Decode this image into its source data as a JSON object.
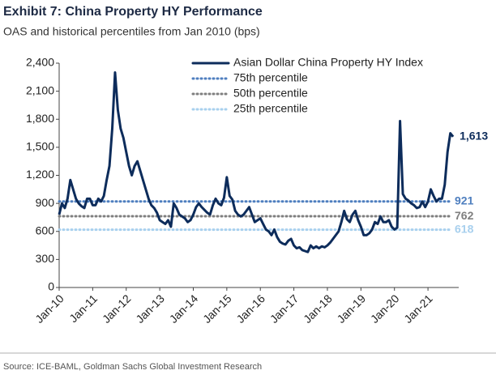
{
  "chart_data": {
    "type": "line",
    "title": "Exhibit 7: China Property HY Performance",
    "subtitle": "OAS and historical percentiles from Jan 2010 (bps)",
    "source": "Source: ICE-BAML, Goldman Sachs Global Investment Research",
    "x": [
      "2010-01",
      "2010-02",
      "2010-03",
      "2010-04",
      "2010-05",
      "2010-06",
      "2010-07",
      "2010-08",
      "2010-09",
      "2010-10",
      "2010-11",
      "2010-12",
      "2011-01",
      "2011-02",
      "2011-03",
      "2011-04",
      "2011-05",
      "2011-06",
      "2011-07",
      "2011-08",
      "2011-09",
      "2011-10",
      "2011-11",
      "2011-12",
      "2012-01",
      "2012-02",
      "2012-03",
      "2012-04",
      "2012-05",
      "2012-06",
      "2012-07",
      "2012-08",
      "2012-09",
      "2012-10",
      "2012-11",
      "2012-12",
      "2013-01",
      "2013-02",
      "2013-03",
      "2013-04",
      "2013-05",
      "2013-06",
      "2013-07",
      "2013-08",
      "2013-09",
      "2013-10",
      "2013-11",
      "2013-12",
      "2014-01",
      "2014-02",
      "2014-03",
      "2014-04",
      "2014-05",
      "2014-06",
      "2014-07",
      "2014-08",
      "2014-09",
      "2014-10",
      "2014-11",
      "2014-12",
      "2015-01",
      "2015-02",
      "2015-03",
      "2015-04",
      "2015-05",
      "2015-06",
      "2015-07",
      "2015-08",
      "2015-09",
      "2015-10",
      "2015-11",
      "2015-12",
      "2016-01",
      "2016-02",
      "2016-03",
      "2016-04",
      "2016-05",
      "2016-06",
      "2016-07",
      "2016-08",
      "2016-09",
      "2016-10",
      "2016-11",
      "2016-12",
      "2017-01",
      "2017-02",
      "2017-03",
      "2017-04",
      "2017-05",
      "2017-06",
      "2017-07",
      "2017-08",
      "2017-09",
      "2017-10",
      "2017-11",
      "2017-12",
      "2018-01",
      "2018-02",
      "2018-03",
      "2018-04",
      "2018-05",
      "2018-06",
      "2018-07",
      "2018-08",
      "2018-09",
      "2018-10",
      "2018-11",
      "2018-12",
      "2019-01",
      "2019-02",
      "2019-03",
      "2019-04",
      "2019-05",
      "2019-06",
      "2019-07",
      "2019-08",
      "2019-09",
      "2019-10",
      "2019-11",
      "2019-12",
      "2020-01",
      "2020-02",
      "2020-03",
      "2020-04",
      "2020-05",
      "2020-06",
      "2020-07",
      "2020-08",
      "2020-09",
      "2020-10",
      "2020-11",
      "2020-12",
      "2021-01",
      "2021-02",
      "2021-03",
      "2021-04",
      "2021-05",
      "2021-06",
      "2021-07",
      "2021-08",
      "2021-09",
      "2021-10"
    ],
    "series": [
      {
        "name": "Asian Dollar China Property HY Index",
        "color": "#0d2c5b",
        "values": [
          780,
          900,
          850,
          950,
          1150,
          1050,
          950,
          900,
          870,
          850,
          950,
          950,
          880,
          880,
          950,
          920,
          980,
          1150,
          1300,
          1700,
          2300,
          1900,
          1700,
          1600,
          1450,
          1300,
          1200,
          1300,
          1350,
          1250,
          1150,
          1050,
          950,
          880,
          850,
          800,
          720,
          700,
          680,
          720,
          650,
          900,
          850,
          780,
          760,
          740,
          700,
          720,
          780,
          860,
          900,
          860,
          830,
          800,
          780,
          880,
          950,
          900,
          880,
          960,
          1180,
          980,
          940,
          820,
          780,
          760,
          780,
          820,
          860,
          780,
          700,
          720,
          740,
          680,
          620,
          600,
          560,
          620,
          540,
          490,
          470,
          460,
          500,
          520,
          450,
          420,
          430,
          400,
          390,
          380,
          450,
          420,
          440,
          420,
          440,
          430,
          450,
          480,
          520,
          560,
          600,
          700,
          820,
          730,
          700,
          780,
          820,
          720,
          650,
          560,
          560,
          580,
          620,
          700,
          680,
          760,
          700,
          700,
          720,
          650,
          620,
          640,
          1780,
          1000,
          950,
          930,
          900,
          880,
          850,
          860,
          920,
          860,
          920,
          1050,
          980,
          920,
          950,
          950,
          1100,
          1450,
          1650,
          1613
        ],
        "value_labels": [
          null,
          null,
          null,
          null,
          null,
          null,
          null,
          null,
          null,
          null,
          null,
          null,
          null,
          null,
          null,
          null,
          null,
          null,
          null,
          null,
          null,
          null,
          null,
          null,
          null,
          null,
          null,
          null,
          null,
          null,
          null,
          null,
          null,
          null,
          null,
          null,
          null,
          null,
          null,
          null,
          null,
          null,
          null,
          null,
          null,
          null,
          null,
          null,
          null,
          null,
          null,
          null,
          null,
          null,
          null,
          null,
          null,
          null,
          null,
          null,
          null,
          null,
          null,
          null,
          null,
          null,
          null,
          null,
          null,
          null,
          null,
          null,
          null,
          null,
          null,
          null,
          null,
          null,
          null,
          null,
          null,
          null,
          null,
          null,
          null,
          null,
          null,
          null,
          null,
          null,
          null,
          null,
          null,
          null,
          null,
          null,
          null,
          null,
          null,
          null,
          null,
          null,
          null,
          null,
          null,
          null,
          null,
          null,
          null,
          null,
          null,
          null,
          null,
          null,
          null,
          null,
          null,
          null,
          null,
          null,
          null,
          null,
          null,
          null,
          null,
          null,
          null,
          null,
          null,
          null,
          null,
          null,
          null,
          null,
          null,
          null,
          null,
          null,
          null,
          null,
          null,
          "1,613"
        ]
      }
    ],
    "reference_lines": [
      {
        "name": "75th percentile",
        "value": 921,
        "color": "#4f7fbf"
      },
      {
        "name": "50th percentile",
        "value": 762,
        "color": "#7f7f7f"
      },
      {
        "name": "25th percentile",
        "value": 618,
        "color": "#a8d0ee"
      }
    ],
    "xlim": [
      "2010-01",
      "2021-12"
    ],
    "xticks": [
      {
        "value": "2010-01",
        "label": "Jan-10"
      },
      {
        "value": "2011-01",
        "label": "Jan-11"
      },
      {
        "value": "2012-01",
        "label": "Jan-12"
      },
      {
        "value": "2013-01",
        "label": "Jan-13"
      },
      {
        "value": "2014-01",
        "label": "Jan-14"
      },
      {
        "value": "2015-01",
        "label": "Jan-15"
      },
      {
        "value": "2016-01",
        "label": "Jan-16"
      },
      {
        "value": "2017-01",
        "label": "Jan-17"
      },
      {
        "value": "2018-01",
        "label": "Jan-18"
      },
      {
        "value": "2019-01",
        "label": "Jan-19"
      },
      {
        "value": "2020-01",
        "label": "Jan-20"
      },
      {
        "value": "2021-01",
        "label": "Jan-21"
      }
    ],
    "ylim": [
      0,
      2400
    ],
    "yticks": [
      0,
      300,
      600,
      900,
      {
        "value": 1200,
        "label": "1,200"
      },
      {
        "value": 1500,
        "label": "1,500"
      },
      {
        "value": 1800,
        "label": "1,800"
      },
      {
        "value": 2100,
        "label": "2,100"
      },
      {
        "value": 2400,
        "label": "2,400"
      }
    ],
    "grid": false,
    "legend": "top-right"
  }
}
